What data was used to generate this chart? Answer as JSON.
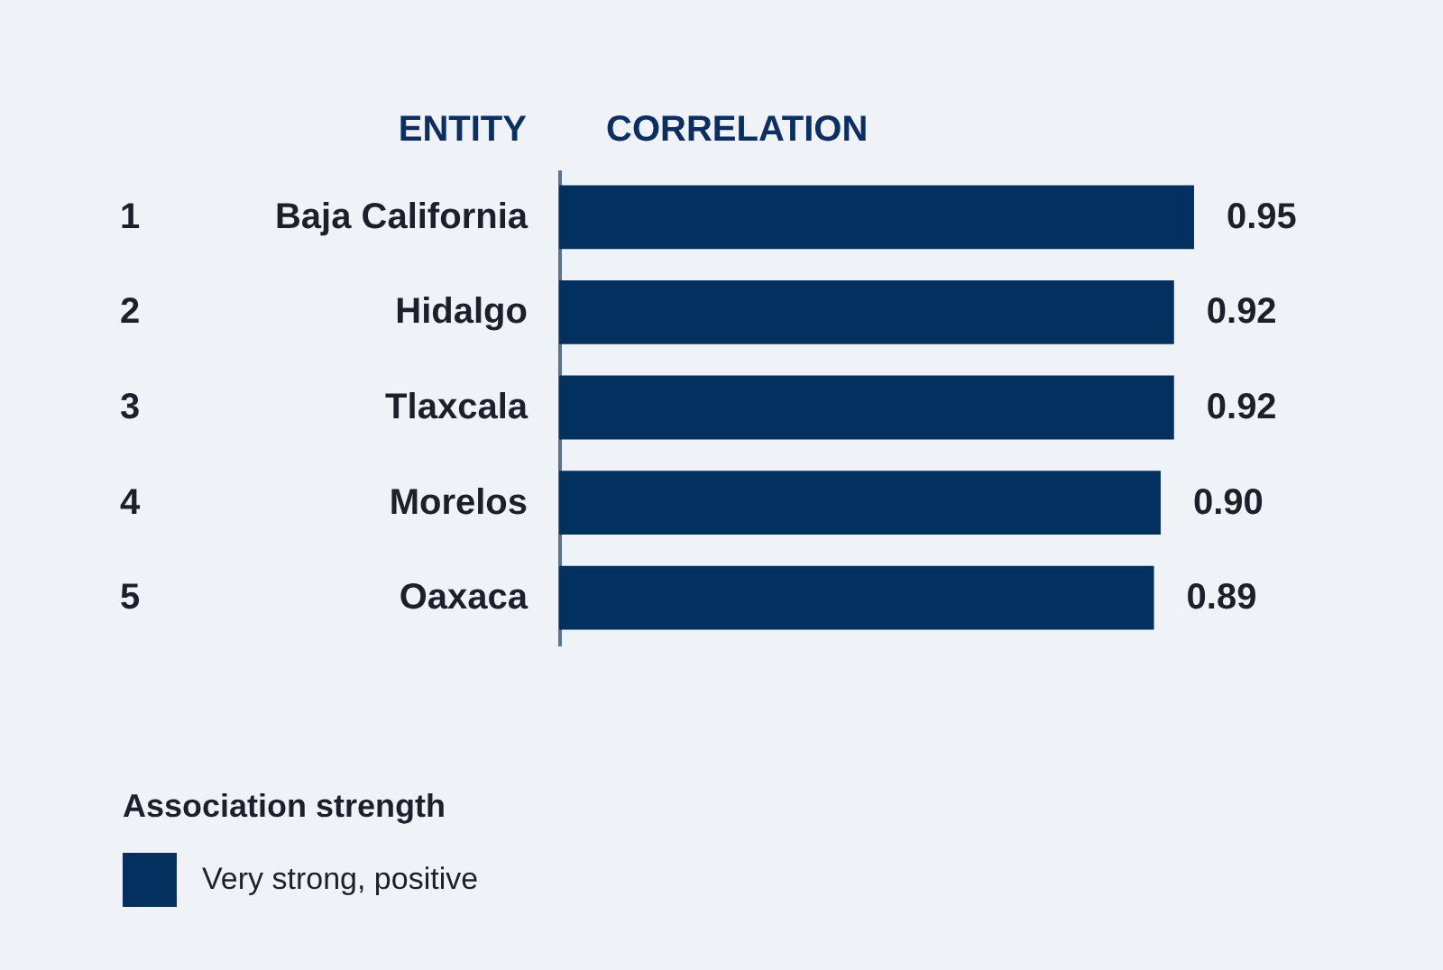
{
  "chart_data": {
    "type": "bar",
    "orientation": "horizontal",
    "ylabel": "ENTITY",
    "xlabel": "CORRELATION",
    "legend_title": "Association strength",
    "legend": "bottom left",
    "categories": [
      "Baja California",
      "Hidalgo",
      "Tlaxcala",
      "Morelos",
      "Oaxaca"
    ],
    "series": [
      {
        "name": "Very strong, positive",
        "color": "#02305f",
        "values": [
          0.95,
          0.92,
          0.92,
          0.9,
          0.89
        ],
        "value_labels": [
          "0.95",
          "0.92",
          "0.92",
          "0.90",
          "0.89"
        ]
      }
    ],
    "annotations": [
      "1",
      "2",
      "3",
      "4",
      "5"
    ]
  }
}
